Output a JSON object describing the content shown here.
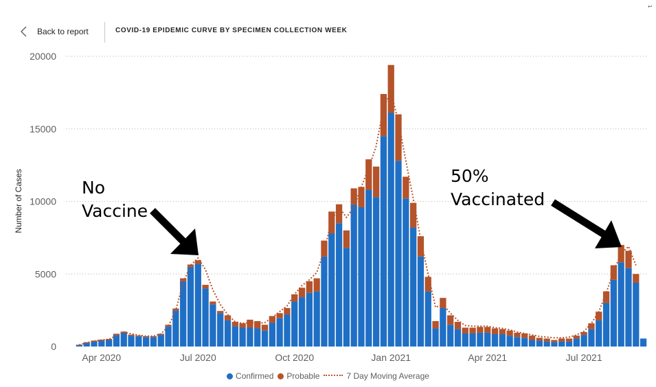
{
  "header": {
    "back_label": "Back to report",
    "title": "COVID-19 EPIDEMIC CURVE BY SPECIMEN COLLECTION WEEK"
  },
  "annotations": {
    "left": [
      "No",
      "Vaccine"
    ],
    "right": [
      "50%",
      "Vaccinated"
    ]
  },
  "colors": {
    "confirmed": "#1f6fc5",
    "probable": "#b5532a",
    "moving_average": "#b5532a",
    "grid": "#b3b0ad",
    "axis_text": "#605e5c"
  },
  "chart_data": {
    "type": "bar",
    "stacked": true,
    "title": "COVID-19 EPIDEMIC CURVE BY SPECIMEN COLLECTION WEEK",
    "xlabel": "",
    "ylabel": "Number of Cases",
    "ylim": [
      0,
      20000
    ],
    "yticks": [
      0,
      5000,
      10000,
      15000,
      20000
    ],
    "x_tick_labels": [
      "Apr 2020",
      "Jul 2020",
      "Oct 2020",
      "Jan 2021",
      "Apr 2021",
      "Jul 2021"
    ],
    "x_tick_weeks": [
      3,
      16,
      29,
      42,
      55,
      68
    ],
    "grid": true,
    "legend_position": "bottom-center",
    "series": [
      {
        "name": "Confirmed",
        "values": [
          100,
          250,
          350,
          400,
          450,
          800,
          950,
          750,
          700,
          650,
          650,
          800,
          1400,
          2500,
          4500,
          5500,
          5700,
          4000,
          2900,
          2300,
          1800,
          1400,
          1300,
          1300,
          1250,
          1100,
          1650,
          1950,
          2200,
          3100,
          3400,
          3700,
          3800,
          6200,
          7800,
          8500,
          6800,
          9800,
          9600,
          10800,
          10300,
          14500,
          16100,
          12800,
          10200,
          8200,
          6200,
          3800,
          1250,
          2650,
          1500,
          1200,
          900,
          900,
          950,
          950,
          850,
          850,
          750,
          650,
          600,
          450,
          400,
          350,
          300,
          350,
          350,
          550,
          800,
          1200,
          1800,
          3000,
          4600,
          5800,
          5400,
          4400,
          550
        ]
      },
      {
        "name": "Probable",
        "values": [
          30,
          50,
          60,
          70,
          70,
          80,
          80,
          70,
          60,
          60,
          60,
          80,
          100,
          120,
          200,
          150,
          250,
          250,
          200,
          150,
          350,
          300,
          300,
          550,
          500,
          400,
          450,
          350,
          450,
          500,
          650,
          800,
          900,
          1100,
          1500,
          1300,
          1200,
          1100,
          1400,
          2100,
          2100,
          2900,
          3300,
          3200,
          1500,
          1700,
          1400,
          1000,
          500,
          700,
          650,
          500,
          400,
          400,
          400,
          400,
          400,
          350,
          350,
          300,
          300,
          300,
          200,
          200,
          150,
          200,
          200,
          200,
          200,
          400,
          600,
          800,
          1000,
          1200,
          1200,
          600,
          0
        ]
      },
      {
        "name": "7 Day Moving Average",
        "type": "line",
        "values": [
          120,
          260,
          380,
          450,
          500,
          750,
          1000,
          880,
          780,
          720,
          720,
          870,
          1400,
          2500,
          4400,
          5600,
          6100,
          5300,
          3900,
          2900,
          2200,
          1700,
          1600,
          1650,
          1600,
          1650,
          2000,
          2400,
          2800,
          3600,
          4200,
          4600,
          5100,
          6600,
          8700,
          9600,
          8900,
          9600,
          11000,
          12300,
          13800,
          16500,
          17500,
          15500,
          12800,
          10200,
          7400,
          5000,
          2700,
          2900,
          2300,
          1800,
          1450,
          1400,
          1400,
          1400,
          1300,
          1250,
          1150,
          1000,
          900,
          800,
          700,
          650,
          600,
          600,
          650,
          800,
          1050,
          1600,
          2400,
          3700,
          5200,
          6400,
          6900,
          5600,
          null
        ]
      }
    ]
  }
}
